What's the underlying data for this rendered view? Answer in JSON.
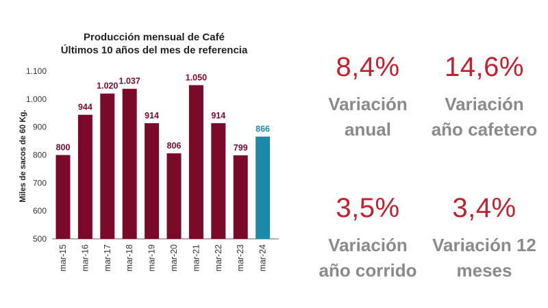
{
  "chart_data": {
    "type": "bar",
    "title": [
      "Producción mensual de Café",
      "Últimos 10 años del mes de referencia"
    ],
    "ylabel": "Miles de sacos de 60 Kg.",
    "xlabel": "",
    "categories": [
      "mar-15",
      "mar-16",
      "mar-17",
      "mar-18",
      "mar-19",
      "mar-20",
      "mar-21",
      "mar-22",
      "mar-23",
      "mar-24"
    ],
    "values": [
      800,
      944,
      1020,
      1037,
      914,
      806,
      1050,
      914,
      799,
      866
    ],
    "value_labels": [
      "800",
      "944",
      "1.020",
      "1.037",
      "914",
      "806",
      "1.050",
      "914",
      "799",
      "866"
    ],
    "ylim": [
      500,
      1100
    ],
    "y_ticks": [
      500,
      600,
      700,
      800,
      900,
      1000,
      1100
    ],
    "y_tick_labels": [
      "500",
      "600",
      "700",
      "800",
      "900",
      "1.000",
      "1.100"
    ],
    "colors": {
      "default": "#7b0a2a",
      "highlight": "#1a8aa8"
    },
    "highlight_index": 9,
    "grid": false,
    "legend": "none"
  },
  "kpis": [
    {
      "value": "8,4%",
      "label_lines": [
        "Variación",
        "anual"
      ]
    },
    {
      "value": "14,6%",
      "label_lines": [
        "Variación",
        "año cafetero"
      ]
    },
    {
      "value": "3,5%",
      "label_lines": [
        "Variación",
        "año corrido"
      ]
    },
    {
      "value": "3,4%",
      "label_lines": [
        "Variación 12",
        "meses"
      ]
    }
  ],
  "colors": {
    "kpi_value": "#c3202e",
    "kpi_label": "#8a8a8a"
  }
}
